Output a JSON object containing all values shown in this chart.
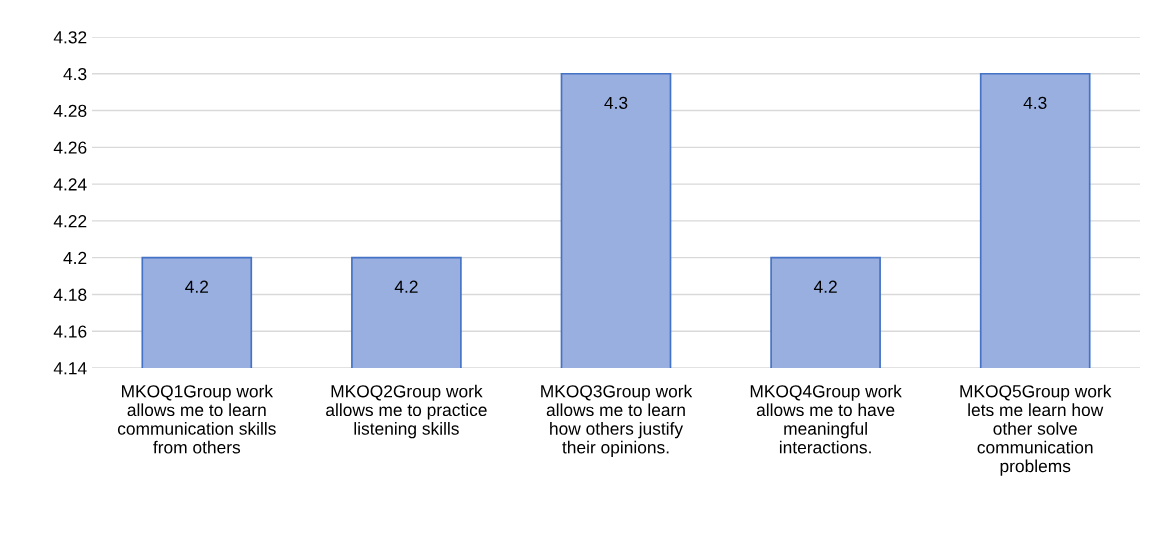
{
  "chart_data": {
    "type": "bar",
    "categories": [
      "MKOQ1Group work\nallows me to learn\ncommunication skills\nfrom others",
      "MKOQ2Group work\nallows me to practice\nlistening skills",
      "MKOQ3Group work\nallows me to learn\nhow others justify\ntheir opinions.",
      "MKOQ4Group work\nallows me to have\nmeaningful\ninteractions.",
      "MKOQ5Group work\nlets me learn how\nother solve\ncommunication\nproblems"
    ],
    "values": [
      4.2,
      4.2,
      4.3,
      4.2,
      4.3
    ],
    "color": "#98afe0",
    "ylim": [
      4.14,
      4.32
    ],
    "yticks": [
      4.14,
      4.16,
      4.18,
      4.2,
      4.22,
      4.24,
      4.26,
      4.28,
      4.3,
      4.32
    ],
    "grid": "y",
    "legend": false,
    "data_labels": true
  }
}
